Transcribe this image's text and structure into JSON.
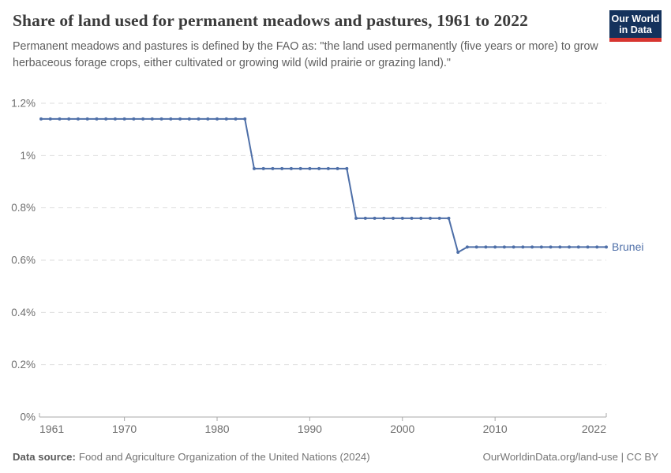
{
  "header": {
    "title": "Share of land used for permanent meadows and pastures, 1961 to 2022",
    "subtitle": "Permanent meadows and pastures is defined by the FAO as: \"the land used permanently (five years or more) to grow herbaceous forage crops, either cultivated or growing wild (wild prairie or grazing land).\"",
    "logo": {
      "line1": "Our World",
      "line2": "in Data"
    }
  },
  "footer": {
    "source_label": "Data source:",
    "source_text": "Food and Agriculture Organization of the United Nations (2024)",
    "credit": "OurWorldinData.org/land-use | CC BY"
  },
  "colors": {
    "line": "#4e6fa8",
    "series_label": "#4e6fa8",
    "grid": "#dddddd",
    "axis": "#a8a8a8",
    "tick_label": "#6e6e6e",
    "logo_bg": "#14325c",
    "logo_red": "#d73530"
  },
  "chart_data": {
    "type": "line",
    "title": "Share of land used for permanent meadows and pastures, 1961 to 2022",
    "xlabel": "",
    "ylabel": "",
    "xlim": [
      1961,
      2022
    ],
    "ylim": [
      0,
      1.2
    ],
    "grid": "horizontal-dashed",
    "legend": "series-label-at-line-end",
    "y_ticks": [
      {
        "value": 0,
        "label": "0%"
      },
      {
        "value": 0.2,
        "label": "0.2%"
      },
      {
        "value": 0.4,
        "label": "0.4%"
      },
      {
        "value": 0.6,
        "label": "0.6%"
      },
      {
        "value": 0.8,
        "label": "0.8%"
      },
      {
        "value": 1.0,
        "label": "1%"
      },
      {
        "value": 1.2,
        "label": "1.2%"
      }
    ],
    "x_ticks": [
      {
        "value": 1961,
        "label": "1961"
      },
      {
        "value": 1970,
        "label": "1970"
      },
      {
        "value": 1980,
        "label": "1980"
      },
      {
        "value": 1990,
        "label": "1990"
      },
      {
        "value": 2000,
        "label": "2000"
      },
      {
        "value": 2010,
        "label": "2010"
      },
      {
        "value": 2022,
        "label": "2022"
      }
    ],
    "series": [
      {
        "name": "Brunei",
        "unit": "%",
        "x": [
          1961,
          1962,
          1963,
          1964,
          1965,
          1966,
          1967,
          1968,
          1969,
          1970,
          1971,
          1972,
          1973,
          1974,
          1975,
          1976,
          1977,
          1978,
          1979,
          1980,
          1981,
          1982,
          1983,
          1984,
          1985,
          1986,
          1987,
          1988,
          1989,
          1990,
          1991,
          1992,
          1993,
          1994,
          1995,
          1996,
          1997,
          1998,
          1999,
          2000,
          2001,
          2002,
          2003,
          2004,
          2005,
          2006,
          2007,
          2008,
          2009,
          2010,
          2011,
          2012,
          2013,
          2014,
          2015,
          2016,
          2017,
          2018,
          2019,
          2020,
          2021,
          2022
        ],
        "values": [
          1.14,
          1.14,
          1.14,
          1.14,
          1.14,
          1.14,
          1.14,
          1.14,
          1.14,
          1.14,
          1.14,
          1.14,
          1.14,
          1.14,
          1.14,
          1.14,
          1.14,
          1.14,
          1.14,
          1.14,
          1.14,
          1.14,
          1.14,
          0.95,
          0.95,
          0.95,
          0.95,
          0.95,
          0.95,
          0.95,
          0.95,
          0.95,
          0.95,
          0.95,
          0.76,
          0.76,
          0.76,
          0.76,
          0.76,
          0.76,
          0.76,
          0.76,
          0.76,
          0.76,
          0.76,
          0.63,
          0.65,
          0.65,
          0.65,
          0.65,
          0.65,
          0.65,
          0.65,
          0.65,
          0.65,
          0.65,
          0.65,
          0.65,
          0.65,
          0.65,
          0.65,
          0.65
        ]
      }
    ]
  }
}
